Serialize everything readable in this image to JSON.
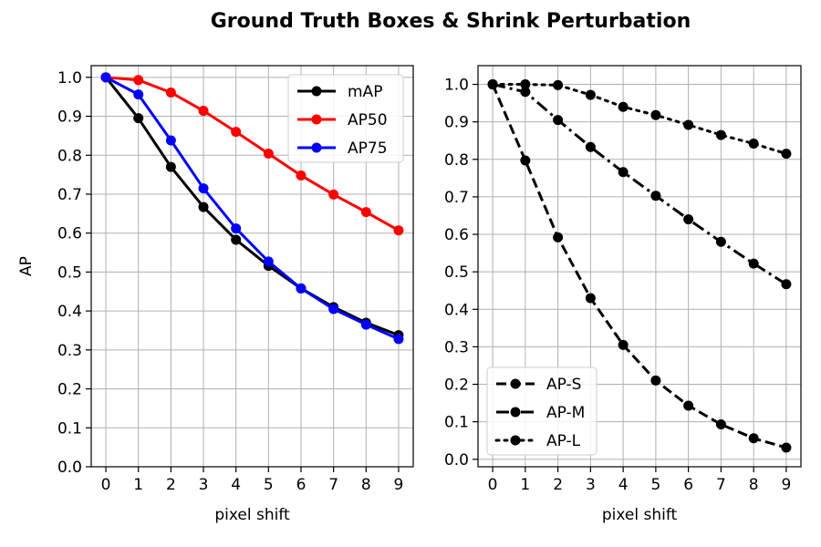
{
  "figure": {
    "title": "Ground Truth Boxes  &  Shrink Perturbation"
  },
  "chart_data": [
    {
      "type": "line",
      "xlabel": "pixel shift",
      "ylabel": "AP",
      "x": [
        0,
        1,
        2,
        3,
        4,
        5,
        6,
        7,
        8,
        9
      ],
      "xlim": [
        -0.45,
        9.45
      ],
      "ylim": [
        0.0,
        1.03
      ],
      "yticks": [
        0.0,
        0.1,
        0.2,
        0.3,
        0.4,
        0.5,
        0.6,
        0.7,
        0.8,
        0.9,
        1.0
      ],
      "grid": true,
      "legend_position": "upper-right",
      "series": [
        {
          "name": "mAP",
          "color": "#000000",
          "linestyle": "solid",
          "values": [
            1.0,
            0.895,
            0.77,
            0.667,
            0.583,
            0.516,
            0.458,
            0.41,
            0.37,
            0.338
          ]
        },
        {
          "name": "AP50",
          "color": "#ff0000",
          "linestyle": "solid",
          "values": [
            1.0,
            0.993,
            0.961,
            0.914,
            0.86,
            0.804,
            0.748,
            0.699,
            0.654,
            0.607
          ]
        },
        {
          "name": "AP75",
          "color": "#0000ff",
          "linestyle": "solid",
          "values": [
            1.0,
            0.956,
            0.838,
            0.715,
            0.612,
            0.527,
            0.458,
            0.405,
            0.365,
            0.328
          ]
        }
      ]
    },
    {
      "type": "line",
      "xlabel": "pixel shift",
      "ylabel": "",
      "x": [
        0,
        1,
        2,
        3,
        4,
        5,
        6,
        7,
        8,
        9
      ],
      "xlim": [
        -0.45,
        9.45
      ],
      "ylim": [
        -0.02,
        1.05
      ],
      "yticks": [
        0.0,
        0.1,
        0.2,
        0.3,
        0.4,
        0.5,
        0.6,
        0.7,
        0.8,
        0.9,
        1.0
      ],
      "grid": true,
      "legend_position": "lower-left",
      "series": [
        {
          "name": "AP-S",
          "color": "#000000",
          "linestyle": "dashed",
          "values": [
            1.0,
            0.797,
            0.592,
            0.43,
            0.305,
            0.21,
            0.143,
            0.093,
            0.056,
            0.031
          ]
        },
        {
          "name": "AP-M",
          "color": "#000000",
          "linestyle": "dashdot",
          "values": [
            1.0,
            0.98,
            0.905,
            0.833,
            0.766,
            0.703,
            0.64,
            0.58,
            0.522,
            0.467
          ]
        },
        {
          "name": "AP-L",
          "color": "#000000",
          "linestyle": "dotted",
          "values": [
            1.0,
            1.0,
            0.998,
            0.972,
            0.94,
            0.918,
            0.892,
            0.865,
            0.842,
            0.815
          ]
        }
      ]
    }
  ]
}
